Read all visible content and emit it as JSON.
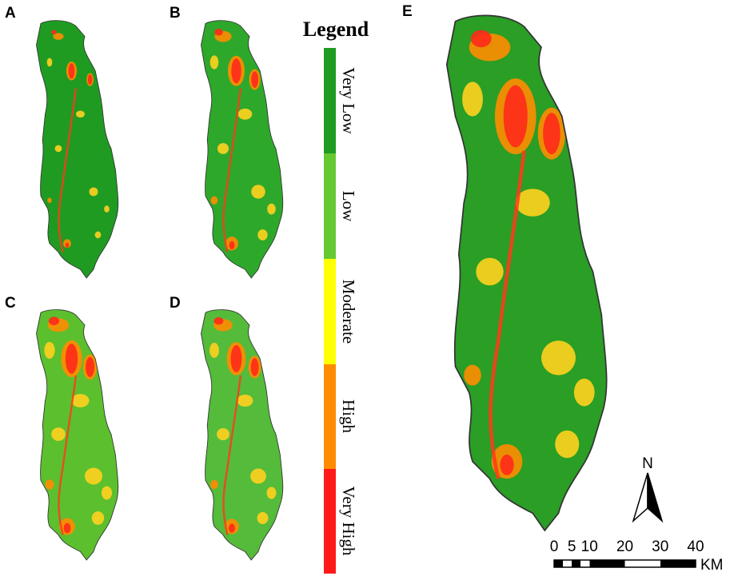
{
  "panels": [
    {
      "label": "A"
    },
    {
      "label": "B"
    },
    {
      "label": "C"
    },
    {
      "label": "D"
    },
    {
      "label": "E"
    }
  ],
  "legend": {
    "title": "Legend",
    "classes": [
      "Very Low",
      "Low",
      "Moderate",
      "High",
      "Very High"
    ]
  },
  "north_arrow": {
    "label": "N"
  },
  "scale_bar": {
    "ticks": [
      0,
      5,
      10,
      20,
      30,
      40
    ],
    "unit": "KM"
  }
}
